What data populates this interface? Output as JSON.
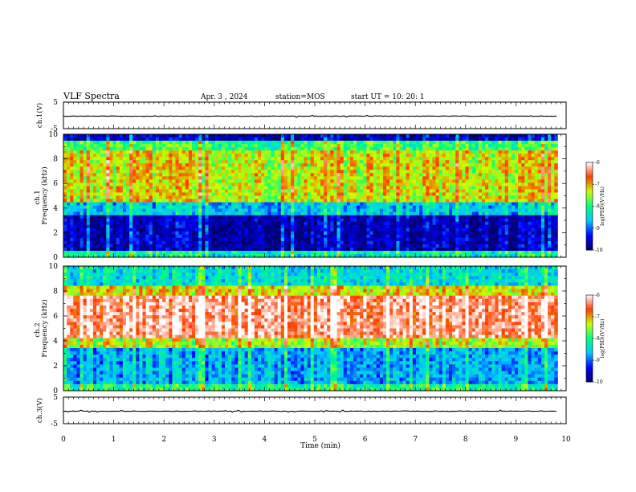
{
  "header": {
    "title": "VLF Spectra",
    "date": "Apr. 3 , 2024",
    "station": "station=MOS",
    "start": "start UT =  10: 20: 1"
  },
  "chart_data": [
    {
      "type": "line",
      "panel": "ch1-waveform",
      "ylabel": "ch.1(V)",
      "ylim": [
        -5,
        5
      ],
      "yticks": [
        "5",
        "-5"
      ],
      "series": [
        {
          "values_level": -0.3
        }
      ]
    },
    {
      "type": "heatmap",
      "panel": "ch1-spectrogram",
      "ylabel_top": "ch.1",
      "ylabel": "Frequency (kHz)",
      "ylim": [
        0,
        10
      ],
      "yticks": [
        "0",
        "2",
        "4",
        "6",
        "8",
        "10"
      ],
      "colorbar_label": "log(PSD)(V²/Hz)",
      "colorbar_ticks": [
        "-6",
        "-7",
        "-8",
        "-9",
        "-10"
      ],
      "colorbar_range": [
        -10,
        -6
      ],
      "colormap": [
        "#000070",
        "#0000ff",
        "#00c8ff",
        "#00ff80",
        "#c8ff00",
        "#ff3c00",
        "#ffffff"
      ],
      "bands_khz": [
        {
          "from": 0,
          "to": 0.4,
          "level": -8.2
        },
        {
          "from": 0.4,
          "to": 3.3,
          "level": -9.7
        },
        {
          "from": 3.3,
          "to": 4.4,
          "level": -8.6
        },
        {
          "from": 4.4,
          "to": 8.6,
          "level": -7.3
        },
        {
          "from": 8.6,
          "to": 9.5,
          "level": -7.9
        },
        {
          "from": 9.5,
          "to": 10,
          "level": -9.6
        }
      ]
    },
    {
      "type": "heatmap",
      "panel": "ch2-spectrogram",
      "ylabel_top": "ch.2",
      "ylabel": "Frequency (kHz)",
      "ylim": [
        0,
        10
      ],
      "yticks": [
        "0",
        "2",
        "4",
        "6",
        "8",
        "10"
      ],
      "colorbar_label": "log(PSD)(V²/Hz)",
      "colorbar_ticks": [
        "-6",
        "-7",
        "-8",
        "-9",
        "-10"
      ],
      "colorbar_range": [
        -10,
        -6
      ],
      "colormap": [
        "#000070",
        "#0000ff",
        "#00c8ff",
        "#00ff80",
        "#c8ff00",
        "#ff3c00",
        "#ffffff"
      ],
      "bands_khz": [
        {
          "from": 0,
          "to": 0.5,
          "level": -8.0
        },
        {
          "from": 0.5,
          "to": 3.4,
          "level": -8.7
        },
        {
          "from": 3.4,
          "to": 4.2,
          "level": -7.4
        },
        {
          "from": 4.2,
          "to": 7.6,
          "level": -6.3
        },
        {
          "from": 7.6,
          "to": 8.4,
          "level": -7.2
        },
        {
          "from": 8.4,
          "to": 10,
          "level": -8.4
        }
      ]
    },
    {
      "type": "line",
      "panel": "ch3-waveform",
      "ylabel": "ch.3(V)",
      "ylim": [
        -5,
        5
      ],
      "yticks": [
        "5",
        "-5"
      ],
      "series": [
        {
          "values_level": -0.3
        }
      ]
    }
  ],
  "xaxis": {
    "label": "Time (min)",
    "range": [
      0,
      10
    ],
    "ticks": [
      "0",
      "1",
      "2",
      "3",
      "4",
      "5",
      "6",
      "7",
      "8",
      "9",
      "10"
    ],
    "data_end_min": 9.83
  }
}
